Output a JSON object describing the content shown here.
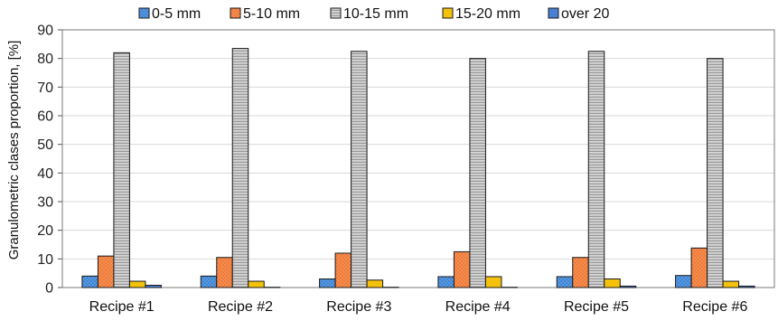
{
  "chart_data": {
    "type": "bar",
    "ylabel": "Granulometric clases proportion, [%]",
    "xlabel": "",
    "ylim": [
      0,
      90
    ],
    "yticks": [
      0,
      10,
      20,
      30,
      40,
      50,
      60,
      70,
      80,
      90
    ],
    "grid": "horizontal",
    "legend_position": "top",
    "categories": [
      "Recipe #1",
      "Recipe #2",
      "Recipe #3",
      "Recipe #4",
      "Recipe #5",
      "Recipe #6"
    ],
    "series": [
      {
        "name": "0-5 mm",
        "color": "#3f86d6",
        "pattern": "dots",
        "values": [
          4.0,
          4.0,
          3.0,
          3.8,
          3.8,
          4.2
        ]
      },
      {
        "name": "5-10 mm",
        "color": "#f07a36",
        "pattern": "dots",
        "values": [
          11.0,
          10.5,
          12.0,
          12.5,
          10.5,
          13.8
        ]
      },
      {
        "name": "10-15 mm",
        "color": "#bcbcbc",
        "pattern": "horizontal",
        "values": [
          82.0,
          83.5,
          82.5,
          80.0,
          82.5,
          80.0
        ]
      },
      {
        "name": "15-20 mm",
        "color": "#f4c20d",
        "pattern": "solid",
        "values": [
          2.2,
          2.2,
          2.6,
          3.8,
          3.0,
          2.2
        ]
      },
      {
        "name": "over 20",
        "color": "#4a7fd4",
        "pattern": "solid",
        "values": [
          0.8,
          0.1,
          0.1,
          0.1,
          0.5,
          0.5
        ]
      }
    ]
  }
}
